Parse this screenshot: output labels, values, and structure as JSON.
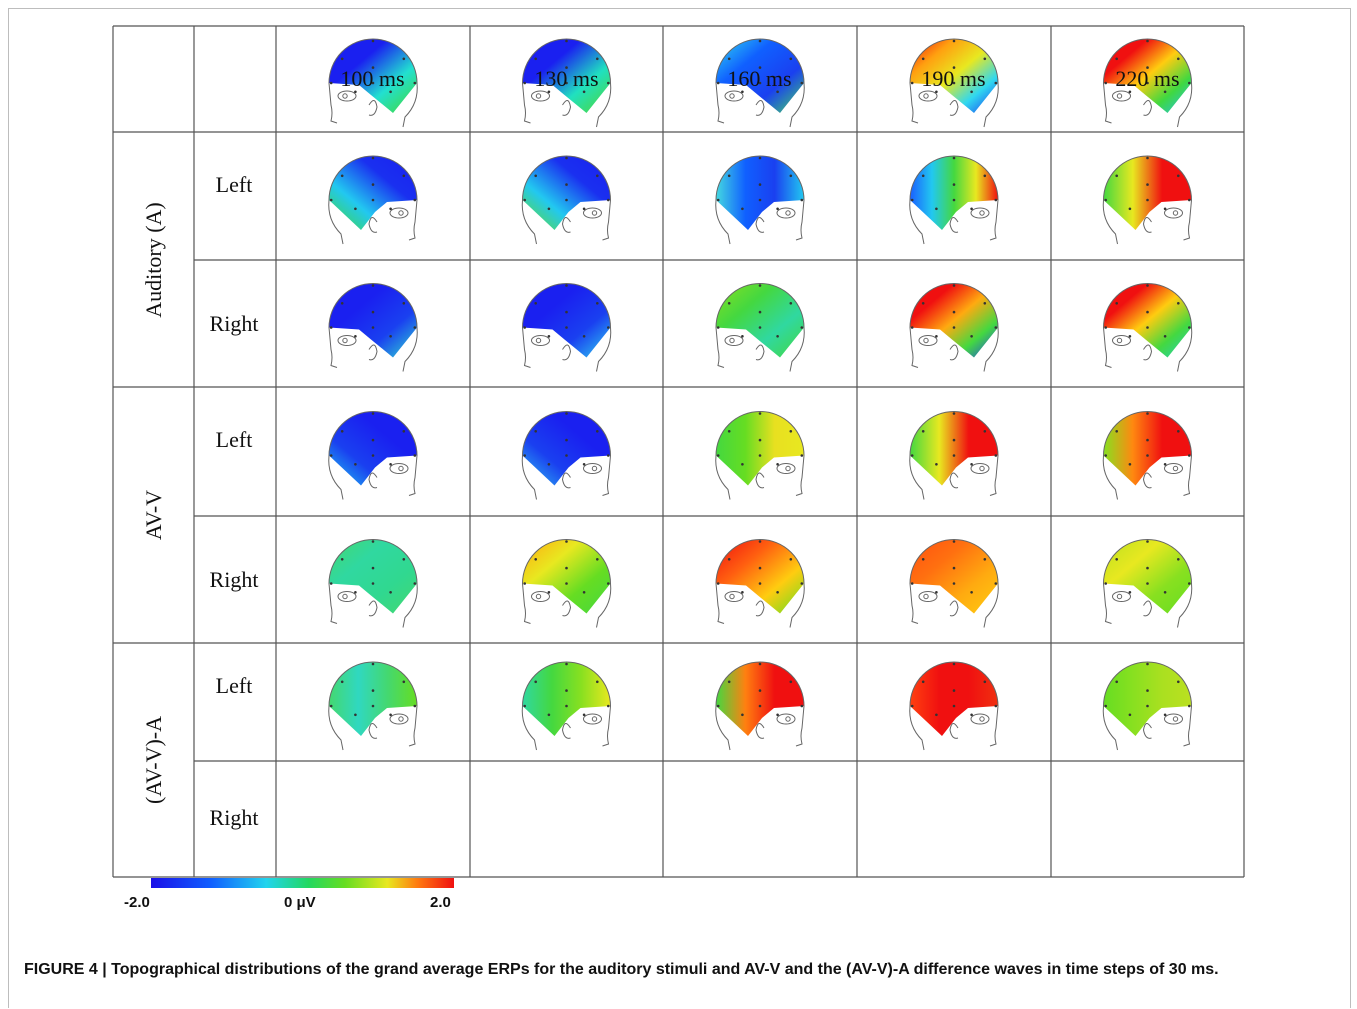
{
  "figure": {
    "columns": [
      "100 ms",
      "130 ms",
      "160 ms",
      "190 ms",
      "220 ms"
    ],
    "groups": [
      {
        "label": "Auditory (A)",
        "rows": [
          {
            "label": "Left",
            "view": "left",
            "maps": [
              {
                "bg": "#1a20f0",
                "grad": [
                  [
                    "#1a20f0",
                    "#1a20f0",
                    "#22e0d0",
                    "#44d930"
                  ],
                  "to bottom right"
                ]
              },
              {
                "bg": "#1a20f0",
                "grad": [
                  [
                    "#1a20f0",
                    "#1a20f0",
                    "#20e0c0",
                    "#50d830"
                  ],
                  "to bottom right"
                ]
              },
              {
                "bg": "#20c0f0",
                "grad": [
                  [
                    "#30d8f0",
                    "#1060ff",
                    "#1a40f0",
                    "#44d860"
                  ],
                  "to bottom right"
                ]
              },
              {
                "bg": "#e01010",
                "grad": [
                  [
                    "#f01010",
                    "#ffa010",
                    "#e8e820",
                    "#30d8f0",
                    "#1a30f0"
                  ],
                  "to bottom right"
                ]
              },
              {
                "bg": "#f01010",
                "grad": [
                  [
                    "#f01010",
                    "#f01010",
                    "#ffcc10",
                    "#40d840",
                    "#22c0f0"
                  ],
                  "to bottom right"
                ]
              }
            ]
          },
          {
            "label": "Right",
            "view": "right",
            "maps": [
              {
                "bg": "#1a20f0",
                "grad": [
                  [
                    "#44d930",
                    "#22c8f0",
                    "#1a30f0",
                    "#1a20f0"
                  ],
                  "to top right"
                ]
              },
              {
                "bg": "#1a20f0",
                "grad": [
                  [
                    "#66dd22",
                    "#22c8f0",
                    "#1a30f0",
                    "#1a20f0"
                  ],
                  "to top right"
                ]
              },
              {
                "bg": "#1060ff",
                "grad": [
                  [
                    "#44d8e0",
                    "#1060ff",
                    "#1a40f0",
                    "#22c8f0"
                  ],
                  "to right"
                ]
              },
              {
                "bg": "#22c0f0",
                "grad": [
                  [
                    "#1a60ff",
                    "#22c8f0",
                    "#44d840",
                    "#e8e820",
                    "#f01010"
                  ],
                  "to right"
                ]
              },
              {
                "bg": "#f01010",
                "grad": [
                  [
                    "#44d840",
                    "#e8e820",
                    "#f01010",
                    "#f01010"
                  ],
                  "to right"
                ]
              }
            ]
          }
        ]
      },
      {
        "label": "AV-V",
        "rows": [
          {
            "label": "Left",
            "view": "left",
            "maps": [
              {
                "bg": "#1a20f0",
                "grad": [
                  [
                    "#1a20f0",
                    "#1a20f0",
                    "#1a40f0",
                    "#30d8d0"
                  ],
                  "to bottom right"
                ]
              },
              {
                "bg": "#1a20f0",
                "grad": [
                  [
                    "#1a20f0",
                    "#1a20f0",
                    "#1a40f0",
                    "#30d0f0"
                  ],
                  "to bottom right"
                ]
              },
              {
                "bg": "#44d840",
                "grad": [
                  [
                    "#88e020",
                    "#44d840",
                    "#30d8a0",
                    "#44d840"
                  ],
                  "to bottom right"
                ]
              },
              {
                "bg": "#f01010",
                "grad": [
                  [
                    "#f01010",
                    "#f01010",
                    "#ffaa10",
                    "#44d840",
                    "#1a40f0"
                  ],
                  "to bottom right"
                ]
              },
              {
                "bg": "#f01010",
                "grad": [
                  [
                    "#f01010",
                    "#f01010",
                    "#ffcc10",
                    "#44d840",
                    "#22d0c0"
                  ],
                  "to bottom right"
                ]
              }
            ]
          },
          {
            "label": "Right",
            "view": "right",
            "maps": [
              {
                "bg": "#1a20f0",
                "grad": [
                  [
                    "#22c8f0",
                    "#1a40f0",
                    "#1a20f0",
                    "#1a20f0"
                  ],
                  "to top right"
                ]
              },
              {
                "bg": "#1a20f0",
                "grad": [
                  [
                    "#30c0f0",
                    "#1a40f0",
                    "#1a20f0",
                    "#1a20f0"
                  ],
                  "to top right"
                ]
              },
              {
                "bg": "#88e020",
                "grad": [
                  [
                    "#44d840",
                    "#66dd22",
                    "#e8e020",
                    "#e8e820"
                  ],
                  "to right"
                ]
              },
              {
                "bg": "#f01010",
                "grad": [
                  [
                    "#44d840",
                    "#e8e820",
                    "#f01010",
                    "#f01010"
                  ],
                  "to right"
                ]
              },
              {
                "bg": "#f01010",
                "grad": [
                  [
                    "#88e020",
                    "#ff8810",
                    "#f01010",
                    "#f01010"
                  ],
                  "to right"
                ]
              }
            ]
          }
        ]
      },
      {
        "label": "(AV-V)-A",
        "rows": [
          {
            "label": "Left",
            "view": "left",
            "maps": [
              {
                "bg": "#30d890",
                "grad": [
                  [
                    "#44d870",
                    "#30d8a0",
                    "#30d890",
                    "#44d870"
                  ],
                  "to bottom right"
                ]
              },
              {
                "bg": "#e8e820",
                "grad": [
                  [
                    "#ffaa10",
                    "#e8e820",
                    "#66dd22",
                    "#44d840"
                  ],
                  "to bottom right"
                ]
              },
              {
                "bg": "#ff6010",
                "grad": [
                  [
                    "#f01010",
                    "#ff6010",
                    "#ffcc10",
                    "#66dd22"
                  ],
                  "to bottom right"
                ]
              },
              {
                "bg": "#ff6010",
                "grad": [
                  [
                    "#ff5010",
                    "#ff7010",
                    "#ffaa10",
                    "#ffcc10"
                  ],
                  "to bottom right"
                ]
              },
              {
                "bg": "#aae020",
                "grad": [
                  [
                    "#bbe020",
                    "#e8e820",
                    "#88e020",
                    "#66dd22"
                  ],
                  "to bottom right"
                ]
              }
            ]
          },
          {
            "label": "Right",
            "view": "right",
            "maps": [
              {
                "bg": "#30d8a0",
                "grad": [
                  [
                    "#44d870",
                    "#30d8c0",
                    "#44d870",
                    "#66dd22"
                  ],
                  "to right"
                ]
              },
              {
                "bg": "#66dd22",
                "grad": [
                  [
                    "#30d8a0",
                    "#44d840",
                    "#88e020",
                    "#e8e820"
                  ],
                  "to right"
                ]
              },
              {
                "bg": "#f01010",
                "grad": [
                  [
                    "#44d840",
                    "#ff8010",
                    "#f01010",
                    "#f01010"
                  ],
                  "to right"
                ]
              },
              {
                "bg": "#f01010",
                "grad": [
                  [
                    "#ff4010",
                    "#f01010",
                    "#f01010",
                    "#f03010"
                  ],
                  "to right"
                ]
              },
              {
                "bg": "#88e020",
                "grad": [
                  [
                    "#66dd22",
                    "#88e020",
                    "#aae020",
                    "#bbe020"
                  ],
                  "to right"
                ]
              }
            ]
          }
        ]
      }
    ],
    "colorbar": {
      "min_label": "-2.0",
      "mid_label": "0 μV",
      "max_label": "2.0"
    },
    "caption": "FIGURE 4 | Topographical distributions of the grand average ERPs for the auditory stimuli and AV-V and the (AV-V)-A difference waves in time steps of 30 ms."
  }
}
